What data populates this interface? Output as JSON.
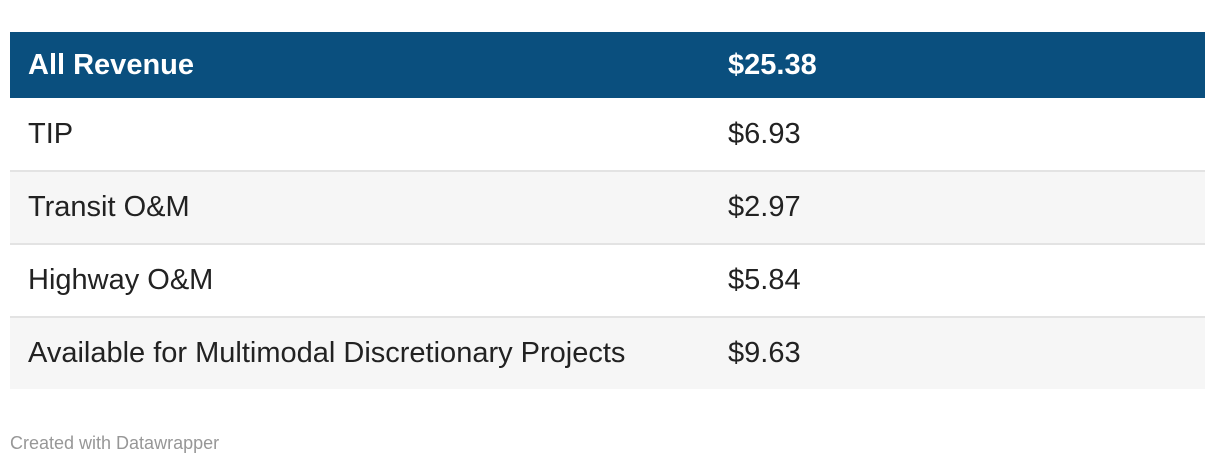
{
  "table": {
    "header": {
      "label": "All Revenue",
      "value": "$25.38"
    },
    "rows": [
      {
        "label": "TIP",
        "value": "$6.93"
      },
      {
        "label": "Transit O&M",
        "value": "$2.97"
      },
      {
        "label": "Highway O&M",
        "value": "$5.84"
      },
      {
        "label": "Available for Multimodal Discretionary Projects",
        "value": "$9.63"
      }
    ]
  },
  "footer": {
    "attribution": "Created with Datawrapper"
  },
  "colors": {
    "header_bg": "#0a4f7e",
    "header_text": "#ffffff",
    "row_bg": "#ffffff",
    "row_alt_bg": "#f6f6f6",
    "row_border": "#e3e3e3",
    "text": "#222222",
    "attribution_text": "#979797"
  },
  "chart_data": {
    "type": "table",
    "header_row": [
      "All Revenue",
      "$25.38"
    ],
    "rows": [
      [
        "TIP",
        "$6.93"
      ],
      [
        "Transit O&M",
        "$2.97"
      ],
      [
        "Highway O&M",
        "$5.84"
      ],
      [
        "Available for Multimodal Discretionary Projects",
        "$9.63"
      ]
    ],
    "values_numeric": {
      "All Revenue": 25.38,
      "TIP": 6.93,
      "Transit O&M": 2.97,
      "Highway O&M": 5.84,
      "Available for Multimodal Discretionary Projects": 9.63
    },
    "attribution": "Created with Datawrapper"
  }
}
